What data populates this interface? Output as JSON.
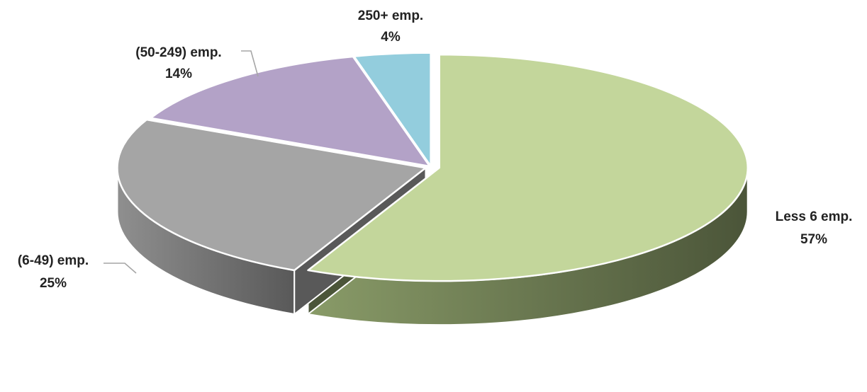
{
  "chart_data": {
    "type": "pie",
    "style": "3d-exploded",
    "slices": [
      {
        "name": "Less 6 emp.",
        "value": 57,
        "label": "57%",
        "color": "#c3d69b",
        "side_dark": "#4b5539",
        "side_light": "#899b68"
      },
      {
        "name": "(6-49) emp.",
        "value": 25,
        "label": "25%",
        "color": "#a5a5a5",
        "side_dark": "#595959",
        "side_light": "#8f8f8f"
      },
      {
        "name": "(50-249) emp.",
        "value": 14,
        "label": "14%",
        "color": "#b3a2c7",
        "side_dark": "#5e5270",
        "side_light": "#8c7aa6"
      },
      {
        "name": "250+ emp.",
        "value": 4,
        "label": "4%",
        "color": "#93cddd",
        "side_dark": "#4f8a9a",
        "side_light": "#6fa9b9"
      }
    ],
    "legend": "none"
  }
}
